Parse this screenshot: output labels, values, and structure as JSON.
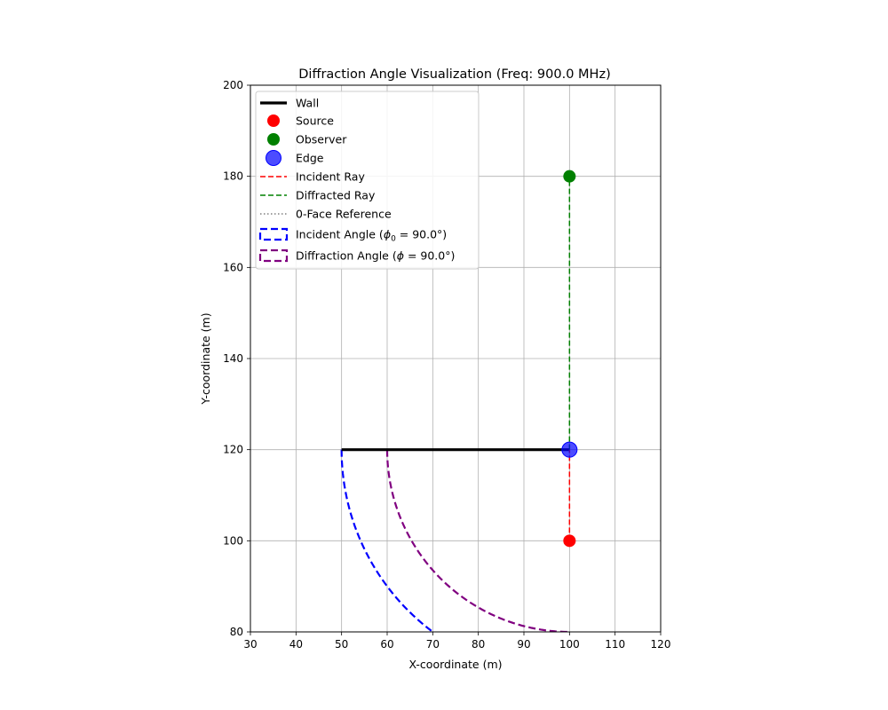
{
  "chart_data": {
    "type": "line",
    "title": "Diffraction Angle Visualization (Freq: 900.0 MHz)",
    "xlabel": "X-coordinate (m)",
    "ylabel": "Y-coordinate (m)",
    "xlim": [
      30,
      120
    ],
    "ylim": [
      80,
      200
    ],
    "xticks": [
      30,
      40,
      50,
      60,
      70,
      80,
      90,
      100,
      110,
      120
    ],
    "yticks": [
      80,
      100,
      120,
      140,
      160,
      180,
      200
    ],
    "grid": true,
    "legend_position": "top-left",
    "wall": {
      "x": [
        50,
        100
      ],
      "y": [
        120,
        120
      ],
      "color": "#000000"
    },
    "points": {
      "source": {
        "x": 100,
        "y": 100,
        "color": "#ff0000"
      },
      "observer": {
        "x": 100,
        "y": 180,
        "color": "#008000"
      },
      "edge": {
        "x": 100,
        "y": 120,
        "color": "#0000ff"
      }
    },
    "rays": {
      "incident": {
        "x": [
          100,
          100
        ],
        "y": [
          100,
          120
        ],
        "color": "#ff0000"
      },
      "diffracted": {
        "x": [
          100,
          100
        ],
        "y": [
          120,
          180
        ],
        "color": "#008000"
      }
    },
    "arcs": {
      "incident": {
        "center": [
          100,
          120
        ],
        "radius": 50,
        "start_deg": 180,
        "end_deg": 270,
        "color": "#0000ff"
      },
      "diffraction": {
        "center": [
          100,
          120
        ],
        "radius": 40,
        "start_deg": 180,
        "end_deg": 270,
        "color": "#800080"
      }
    },
    "legend": [
      {
        "key": "wall",
        "label": "Wall",
        "marker": "line-solid",
        "color": "#000000"
      },
      {
        "key": "source",
        "label": "Source",
        "marker": "dot",
        "color": "#ff0000"
      },
      {
        "key": "observer",
        "label": "Observer",
        "marker": "dot",
        "color": "#008000"
      },
      {
        "key": "edge",
        "label": "Edge",
        "marker": "dot-big",
        "color": "#0000ff"
      },
      {
        "key": "incident-ray",
        "label": "Incident Ray",
        "marker": "line-dashed",
        "color": "#ff0000"
      },
      {
        "key": "diffracted-ray",
        "label": "Diffracted Ray",
        "marker": "line-dashed",
        "color": "#008000"
      },
      {
        "key": "face-reference",
        "label": "0-Face Reference",
        "marker": "line-dotted",
        "color": "#808080"
      },
      {
        "key": "incident-angle",
        "label_prefix": "Incident Angle (",
        "symbol": "ϕ",
        "subscript": "0",
        "label_suffix": " = 90.0°)",
        "marker": "patch",
        "color": "#0000ff"
      },
      {
        "key": "diffraction-angle",
        "label_prefix": "Diffraction Angle (",
        "symbol": "ϕ",
        "subscript": "",
        "label_suffix": " = 90.0°)",
        "marker": "patch",
        "color": "#800080"
      }
    ]
  }
}
